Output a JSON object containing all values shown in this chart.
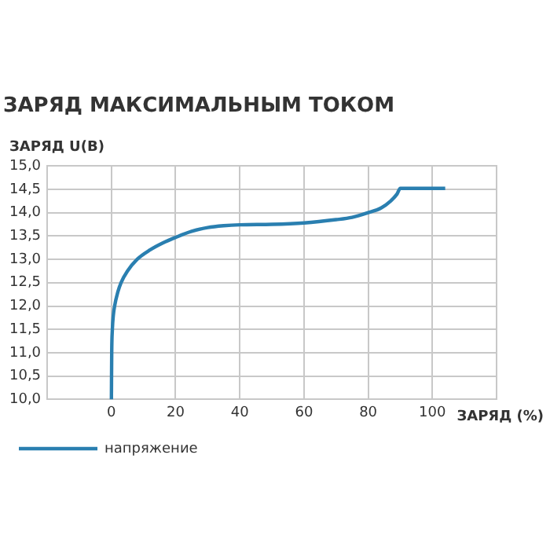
{
  "chart_data": {
    "type": "line",
    "title": "ЗАРЯД МАКСИМАЛЬНЫМ ТОКОМ",
    "ylabel": "ЗАРЯД U(В)",
    "xlabel": "ЗАРЯД (%)",
    "series": [
      {
        "name": "напряжение",
        "color": "#2a7fb0",
        "x": [
          0,
          0.1,
          0.3,
          0.6,
          1,
          2,
          3,
          5,
          8,
          12,
          16,
          20,
          25,
          30,
          35,
          40,
          50,
          60,
          70,
          75,
          80,
          84,
          87,
          89,
          90,
          95,
          100,
          104
        ],
        "values": [
          10,
          11,
          11.5,
          11.8,
          12,
          12.3,
          12.5,
          12.75,
          13,
          13.2,
          13.35,
          13.47,
          13.6,
          13.68,
          13.72,
          13.74,
          13.75,
          13.78,
          13.85,
          13.9,
          14,
          14.1,
          14.25,
          14.4,
          14.52,
          14.52,
          14.52,
          14.52
        ]
      }
    ],
    "xlim": [
      -20,
      120
    ],
    "xticks": [
      0,
      20,
      40,
      60,
      80,
      100
    ],
    "ylim": [
      10,
      15
    ],
    "yticks": [
      {
        "value": 10,
        "label": "10,0"
      },
      {
        "value": 10.5,
        "label": "10,5"
      },
      {
        "value": 11,
        "label": "11,0"
      },
      {
        "value": 11.5,
        "label": "11,5"
      },
      {
        "value": 12,
        "label": "12,0"
      },
      {
        "value": 12.5,
        "label": "12,5"
      },
      {
        "value": 13,
        "label": "13,0"
      },
      {
        "value": 13.5,
        "label": "13,5"
      },
      {
        "value": 14,
        "label": "14,0"
      },
      {
        "value": 14.5,
        "label": "14,5"
      },
      {
        "value": 15,
        "label": "15,0"
      }
    ],
    "grid": true,
    "legend": "bottom left",
    "marker": "none",
    "line_style": "solid"
  }
}
